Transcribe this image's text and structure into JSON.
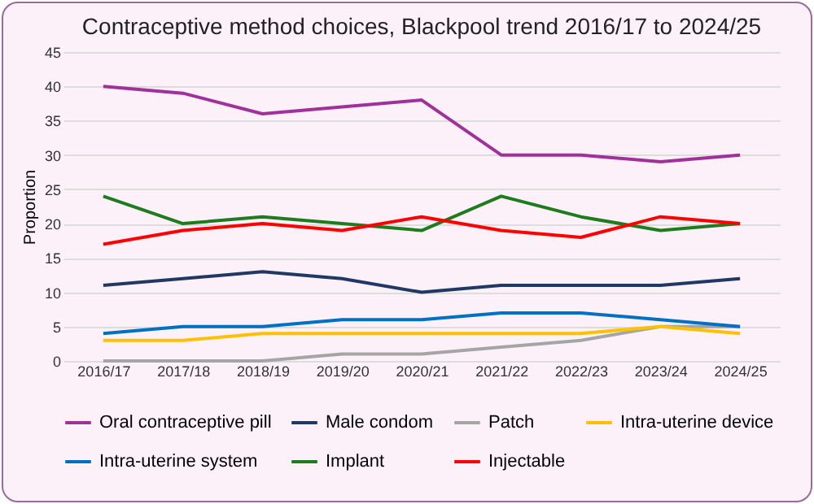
{
  "chart_data": {
    "type": "line",
    "title": "Contraceptive method choices, Blackpool trend 2016/17 to 2024/25",
    "ylabel": "Proportion",
    "categories": [
      "2016/17",
      "2017/18",
      "2018/19",
      "2019/20",
      "2020/21",
      "2021/22",
      "2022/23",
      "2023/24",
      "2024/25"
    ],
    "series": [
      {
        "name": "Oral contraceptive pill",
        "color": "#a0309a",
        "values": [
          40,
          39,
          36,
          37,
          38,
          30,
          30,
          29,
          30
        ]
      },
      {
        "name": "Male condom",
        "color": "#1f3864",
        "values": [
          11,
          12,
          13,
          12,
          10,
          11,
          11,
          11,
          12
        ]
      },
      {
        "name": "Patch",
        "color": "#a5a5a5",
        "values": [
          0,
          0,
          0,
          1,
          1,
          2,
          3,
          5,
          5
        ]
      },
      {
        "name": "Intra-uterine device",
        "color": "#ffc000",
        "values": [
          3,
          3,
          4,
          4,
          4,
          4,
          4,
          5,
          4
        ]
      },
      {
        "name": "Intra-uterine system",
        "color": "#0070c0",
        "values": [
          4,
          5,
          5,
          6,
          6,
          7,
          7,
          6,
          5
        ]
      },
      {
        "name": "Implant",
        "color": "#1e7b1e",
        "values": [
          24,
          20,
          21,
          20,
          19,
          24,
          21,
          19,
          20
        ]
      },
      {
        "name": "Injectable",
        "color": "#ff0000",
        "values": [
          17,
          19,
          20,
          19,
          21,
          19,
          18,
          21,
          20
        ]
      }
    ],
    "ylim": [
      0,
      45
    ],
    "yticks": [
      0,
      5,
      10,
      15,
      20,
      25,
      30,
      35,
      40,
      45
    ],
    "grid": "y",
    "legend": "bottom",
    "line_style": "solid"
  }
}
